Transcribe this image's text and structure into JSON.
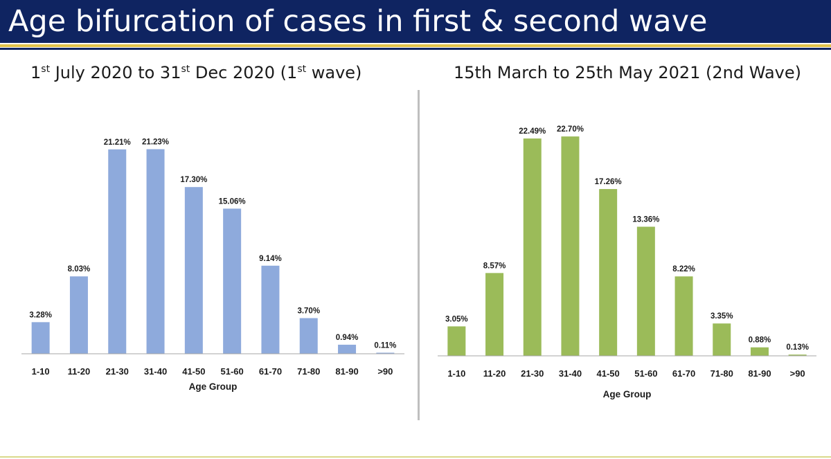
{
  "header": {
    "title": "Age bifurcation of cases in first & second wave"
  },
  "panels": {
    "left": {
      "title_parts": {
        "a": "1",
        "b": "st",
        "c": " July 2020 to 31",
        "d": "st",
        "e": " Dec 2020 (1",
        "f": "st",
        "g": " wave)"
      }
    },
    "right": {
      "title": "15th March to 25th May 2021 (2nd Wave)"
    }
  },
  "colors": {
    "header": "#0f2461",
    "accent_line": "#e0c24a",
    "wave1_bar": "#8eaadc",
    "wave2_bar": "#9bbb59"
  },
  "chart_data": [
    {
      "type": "bar",
      "title": "1st July 2020 to 31st Dec 2020 (1st wave)",
      "xlabel": "Age Group",
      "ylabel": "",
      "ylim": [
        0,
        25
      ],
      "grid": false,
      "categories": [
        "1-10",
        "11-20",
        "21-30",
        "31-40",
        "41-50",
        "51-60",
        "61-70",
        "71-80",
        "81-90",
        ">90"
      ],
      "values": [
        3.28,
        8.03,
        21.21,
        21.23,
        17.3,
        15.06,
        9.14,
        3.7,
        0.94,
        0.11
      ],
      "data_labels": [
        "3.28%",
        "8.03%",
        "21.21%",
        "21.23%",
        "17.30%",
        "15.06%",
        "9.14%",
        "3.70%",
        "0.94%",
        "0.11%"
      ],
      "color": "#8eaadc"
    },
    {
      "type": "bar",
      "title": "15th March to 25th May 2021 (2nd Wave)",
      "xlabel": "Age Group",
      "ylabel": "",
      "ylim": [
        0,
        25
      ],
      "grid": false,
      "categories": [
        "1-10",
        "11-20",
        "21-30",
        "31-40",
        "41-50",
        "51-60",
        "61-70",
        "71-80",
        "81-90",
        ">90"
      ],
      "values": [
        3.05,
        8.57,
        22.49,
        22.7,
        17.26,
        13.36,
        8.22,
        3.35,
        0.88,
        0.13
      ],
      "data_labels": [
        "3.05%",
        "8.57%",
        "22.49%",
        "22.70%",
        "17.26%",
        "13.36%",
        "8.22%",
        "3.35%",
        "0.88%",
        "0.13%"
      ],
      "color": "#9bbb59"
    }
  ]
}
